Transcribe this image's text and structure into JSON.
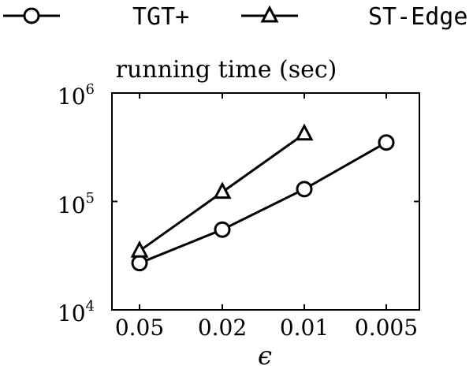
{
  "chart_data": {
    "type": "line",
    "title": "running time (sec)",
    "xlabel": "ϵ",
    "ylabel": "",
    "y_scale": "log",
    "ylim": [
      10000,
      1000000
    ],
    "categories": [
      "0.05",
      "0.02",
      "0.01",
      "0.005"
    ],
    "y_ticks": [
      {
        "value": 10000,
        "base": "10",
        "exp": "4"
      },
      {
        "value": 100000,
        "base": "10",
        "exp": "5"
      },
      {
        "value": 1000000,
        "base": "10",
        "exp": "6"
      }
    ],
    "series": [
      {
        "name": "TGT+",
        "marker": "circle",
        "values": [
          27000,
          55000,
          130000,
          350000
        ]
      },
      {
        "name": "ST-Edge",
        "marker": "triangle",
        "values": [
          35000,
          122000,
          420000,
          null
        ]
      }
    ],
    "legend_position": "top",
    "grid": false,
    "colors": {
      "line": "#000000",
      "marker_fill": "#ffffff"
    }
  }
}
